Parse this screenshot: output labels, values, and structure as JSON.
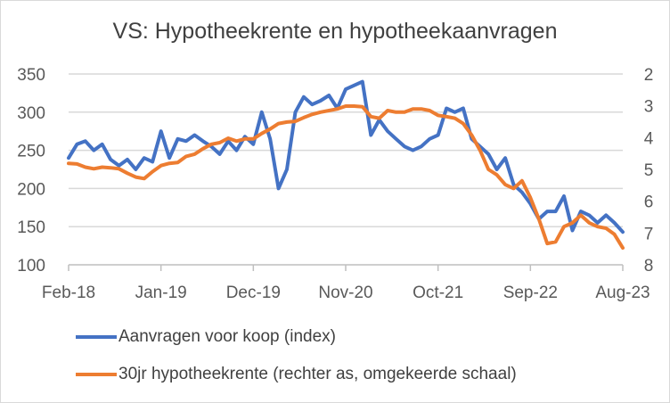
{
  "chart_data": {
    "type": "line",
    "title": "VS: Hypotheekrente en hypotheekaanvragen",
    "x_tick_labels": [
      "Feb-18",
      "Jan-19",
      "Dec-19",
      "Nov-20",
      "Oct-21",
      "Sep-22",
      "Aug-23"
    ],
    "x_range_months": [
      0,
      66
    ],
    "left_axis": {
      "ylim": [
        100,
        350
      ],
      "ticks": [
        "100",
        "150",
        "200",
        "250",
        "300",
        "350"
      ]
    },
    "right_axis": {
      "ylim": [
        2,
        8
      ],
      "inverted": true,
      "ticks": [
        "2",
        "3",
        "4",
        "5",
        "6",
        "7",
        "8"
      ]
    },
    "grid": true,
    "legend_placement": "bottom",
    "series": [
      {
        "name": "Aanvragen voor koop (index)",
        "axis": "left",
        "color": "#4472C4",
        "values": [
          240,
          258,
          262,
          250,
          258,
          238,
          230,
          238,
          225,
          240,
          235,
          275,
          240,
          265,
          262,
          270,
          262,
          255,
          245,
          262,
          250,
          268,
          258,
          300,
          265,
          200,
          225,
          300,
          320,
          310,
          315,
          322,
          305,
          330,
          335,
          340,
          270,
          290,
          275,
          265,
          255,
          250,
          255,
          265,
          270,
          305,
          300,
          305,
          265,
          255,
          245,
          225,
          240,
          205,
          195,
          180,
          160,
          170,
          170,
          190,
          145,
          170,
          165,
          155,
          165,
          155,
          143
        ]
      },
      {
        "name": "30jr hypotheekrente (rechter as, omgekeerde schaal)",
        "axis": "right",
        "color": "#ED7D31",
        "values": [
          4.81,
          4.83,
          4.93,
          4.98,
          4.93,
          4.95,
          4.98,
          5.12,
          5.24,
          5.29,
          5.07,
          4.88,
          4.81,
          4.78,
          4.59,
          4.52,
          4.35,
          4.21,
          4.16,
          4.02,
          4.11,
          4.04,
          4.04,
          3.87,
          3.73,
          3.56,
          3.51,
          3.49,
          3.37,
          3.27,
          3.2,
          3.15,
          3.1,
          3.01,
          3.01,
          3.03,
          3.34,
          3.39,
          3.15,
          3.2,
          3.2,
          3.1,
          3.1,
          3.15,
          3.3,
          3.34,
          3.39,
          3.56,
          3.92,
          4.4,
          5.0,
          5.17,
          5.48,
          5.6,
          5.36,
          5.89,
          6.56,
          7.33,
          7.28,
          6.8,
          6.68,
          6.44,
          6.68,
          6.8,
          6.85,
          7.04,
          7.47
        ]
      }
    ]
  }
}
